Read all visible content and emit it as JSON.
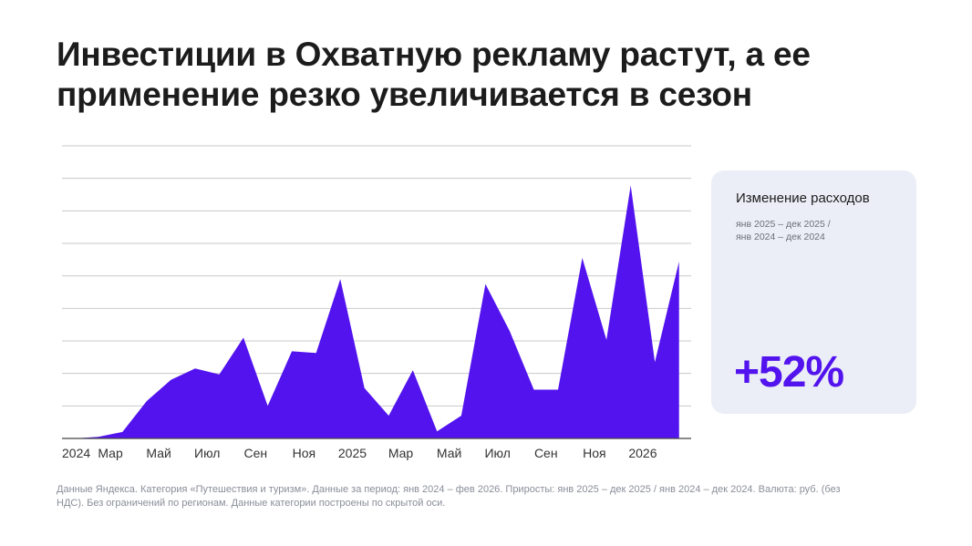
{
  "title": {
    "line1": "Инвестиции в Охватную рекламу растут, а ее",
    "line2": "применение резко увеличивается в сезон"
  },
  "card": {
    "title": "Изменение расходов",
    "subtitle_line1": "янв 2025 – дек 2025 /",
    "subtitle_line2": "янв 2024 – дек 2024",
    "value": "+52%"
  },
  "footnote": "Данные Яндекса. Категория «Путешествия и туризм». Данные за период: янв 2024 – фев 2026. Приросты: янв 2025 – дек 2025 / янв 2024 – дек 2024. Валюта: руб. (без НДС). Без ограничений по регионам. Данные категории построены по скрытой оси.",
  "colors": {
    "series": "#5213ee",
    "grid": "#c9c9c9",
    "axis": "#444444",
    "card_bg": "#ebeef6"
  },
  "chart_data": {
    "type": "area",
    "title": "",
    "xlabel": "",
    "ylabel": "",
    "hidden_y_axis": true,
    "grid": true,
    "ylim": [
      0,
      90
    ],
    "y_gridlines": [
      10,
      20,
      30,
      40,
      50,
      60,
      70,
      80,
      90
    ],
    "x_tick_labels": [
      "2024",
      "Мар",
      "Май",
      "Июл",
      "Сен",
      "Ноя",
      "2025",
      "Мар",
      "Май",
      "Июл",
      "Сен",
      "Ноя",
      "2026"
    ],
    "x_tick_positions": [
      0,
      4,
      8,
      12,
      16,
      20,
      24,
      28,
      32,
      36,
      40,
      44,
      48
    ],
    "series": [
      {
        "name": "Расходы",
        "x": [
          1,
          3,
          5,
          7,
          9,
          11,
          13,
          15,
          17,
          19,
          21,
          23,
          25,
          27,
          29,
          31,
          33,
          35,
          37,
          39,
          41,
          43,
          45,
          47,
          49,
          51
        ],
        "values": [
          0,
          0.5,
          2,
          11.5,
          18,
          21.5,
          19.7,
          31,
          10,
          26.8,
          26.3,
          49,
          15.5,
          7,
          21,
          2.2,
          7,
          47.5,
          33,
          15,
          15,
          55.5,
          30.3,
          77.8,
          23.5,
          54.4
        ]
      }
    ]
  }
}
